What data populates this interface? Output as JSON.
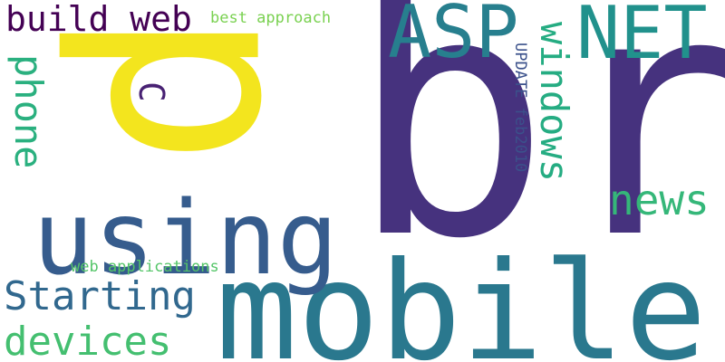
{
  "words": [
    {
      "text": "br",
      "color": "#46327e",
      "orientation": "horizontal"
    },
    {
      "text": "p",
      "color": "#f3e51e",
      "orientation": "vertical"
    },
    {
      "text": "mobile",
      "color": "#2a788e",
      "orientation": "horizontal"
    },
    {
      "text": "using",
      "color": "#365c8d",
      "orientation": "horizontal"
    },
    {
      "text": "ASP",
      "color": "#277f8e",
      "orientation": "horizontal"
    },
    {
      "text": "NET",
      "color": "#21918c",
      "orientation": "horizontal"
    },
    {
      "text": "build web",
      "color": "#440154",
      "orientation": "horizontal"
    },
    {
      "text": "best approach",
      "color": "#7ad151",
      "orientation": "horizontal"
    },
    {
      "text": "windows",
      "color": "#25ac82",
      "orientation": "vertical"
    },
    {
      "text": "phone",
      "color": "#2ab07f",
      "orientation": "vertical"
    },
    {
      "text": "C",
      "color": "#482173",
      "orientation": "vertical"
    },
    {
      "text": "UPDATE feb2010",
      "color": "#3b518b",
      "orientation": "vertical"
    },
    {
      "text": "news",
      "color": "#35b779",
      "orientation": "horizontal"
    },
    {
      "text": "Starting",
      "color": "#31688e",
      "orientation": "horizontal"
    },
    {
      "text": "devices",
      "color": "#44bf70",
      "orientation": "horizontal"
    },
    {
      "text": "web applications",
      "color": "#54c568",
      "orientation": "horizontal"
    }
  ]
}
